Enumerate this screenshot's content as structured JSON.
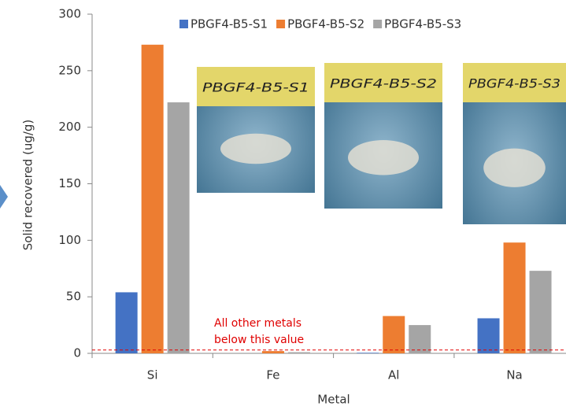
{
  "chart_data": {
    "type": "bar",
    "categories": [
      "Si",
      "Fe",
      "Al",
      "Na"
    ],
    "series": [
      {
        "name": "PBGF4-B5-S1",
        "color": "#4472c4",
        "values": [
          54,
          0,
          0.5,
          31
        ]
      },
      {
        "name": "PBGF4-B5-S2",
        "color": "#ed7d31",
        "values": [
          273,
          2,
          33,
          98
        ]
      },
      {
        "name": "PBGF4-B5-S3",
        "color": "#a5a5a5",
        "values": [
          222,
          1,
          25,
          73
        ]
      }
    ],
    "ylim": [
      0,
      300
    ],
    "yticks": [
      0,
      50,
      100,
      150,
      200,
      250,
      300
    ],
    "y_label": "Solid recovered (ug/g)",
    "x_label": "Metal",
    "threshold": {
      "value": 3,
      "label": [
        "All other metals",
        "below this value"
      ],
      "color": "#e00000"
    },
    "photo_labels": [
      "PBGF4-B5-S1",
      "PBGF4-B5-S2",
      "PBGF4-B5-S3"
    ]
  }
}
